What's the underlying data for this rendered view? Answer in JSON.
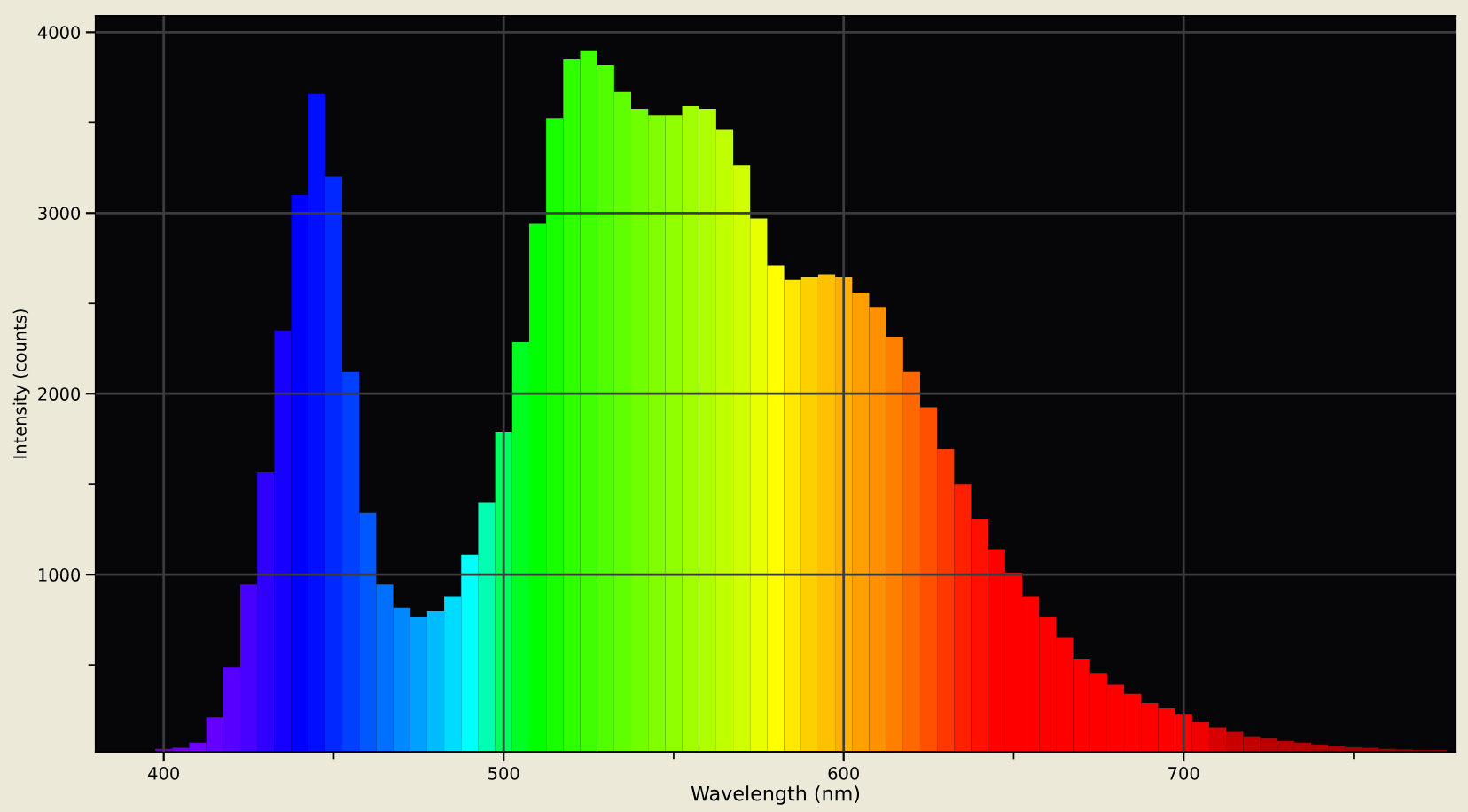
{
  "chart_data": {
    "type": "bar",
    "xlabel": "Wavelength (nm)",
    "ylabel": "Intensity (counts)",
    "x": [
      400,
      405,
      410,
      415,
      420,
      425,
      430,
      435,
      440,
      445,
      450,
      455,
      460,
      465,
      470,
      475,
      480,
      485,
      490,
      495,
      500,
      505,
      510,
      515,
      520,
      525,
      530,
      535,
      540,
      545,
      550,
      555,
      560,
      565,
      570,
      575,
      580,
      585,
      590,
      595,
      600,
      605,
      610,
      615,
      620,
      625,
      630,
      635,
      640,
      645,
      650,
      655,
      660,
      665,
      670,
      675,
      680,
      685,
      690,
      695,
      700,
      705,
      710,
      715,
      720,
      725,
      730,
      735,
      740,
      745,
      750,
      755,
      760,
      765,
      770,
      775
    ],
    "values": [
      36,
      42,
      70,
      210,
      490,
      945,
      1565,
      2350,
      3100,
      3660,
      3200,
      2120,
      1340,
      945,
      815,
      765,
      800,
      880,
      1110,
      1400,
      1790,
      2285,
      2940,
      3525,
      3850,
      3900,
      3820,
      3670,
      3575,
      3540,
      3540,
      3590,
      3575,
      3460,
      3265,
      2970,
      2710,
      2630,
      2645,
      2660,
      2645,
      2560,
      2480,
      2315,
      2120,
      1925,
      1695,
      1500,
      1305,
      1140,
      1010,
      880,
      765,
      650,
      535,
      455,
      390,
      340,
      290,
      260,
      225,
      185,
      155,
      130,
      105,
      95,
      80,
      70,
      60,
      50,
      45,
      42,
      36,
      33,
      30,
      30
    ],
    "colors": [
      "#6a00c0",
      "#7000e0",
      "#7000ff",
      "#6400ff",
      "#5800ff",
      "#4800ff",
      "#3000ff",
      "#1800ff",
      "#0000ff",
      "#0010ff",
      "#0028ff",
      "#0040ff",
      "#0058ff",
      "#0070ff",
      "#0088ff",
      "#00a0ff",
      "#00bcff",
      "#00dcff",
      "#00ffff",
      "#00ffb0",
      "#00ff60",
      "#00ff20",
      "#00ff00",
      "#18ff00",
      "#30ff00",
      "#40ff00",
      "#50ff00",
      "#60ff00",
      "#70ff00",
      "#80ff00",
      "#90ff00",
      "#a0ff00",
      "#b0ff00",
      "#c0ff00",
      "#d0ff00",
      "#e8ff00",
      "#ffff00",
      "#ffe800",
      "#ffd000",
      "#ffc000",
      "#ffb000",
      "#ffa000",
      "#ff9000",
      "#ff8000",
      "#ff6800",
      "#ff5000",
      "#ff3800",
      "#ff2000",
      "#ff1000",
      "#ff0000",
      "#ff0000",
      "#ff0000",
      "#ff0000",
      "#ff0000",
      "#ff0000",
      "#ff0000",
      "#ff0000",
      "#ff0000",
      "#ff0000",
      "#ff0000",
      "#ff0000",
      "#f00000",
      "#d80000",
      "#c80000",
      "#c00000",
      "#b80000",
      "#b40000",
      "#b00000",
      "#ac0000",
      "#a80000",
      "#a40000",
      "#a00000",
      "#9c0000",
      "#980000",
      "#940000",
      "#900000"
    ],
    "xlim": [
      380,
      780
    ],
    "ylim": [
      20,
      4090
    ],
    "xticks": [
      400,
      {
        "value": 450,
        "label": null
      },
      500,
      {
        "value": 550,
        "label": null
      },
      600,
      {
        "value": 650,
        "label": null
      },
      700,
      {
        "value": 750,
        "label": null
      }
    ],
    "yticks": [
      {
        "value": 500,
        "label": null
      },
      1000,
      {
        "value": 1500,
        "label": null
      },
      2000,
      {
        "value": 2500,
        "label": null
      },
      3000,
      {
        "value": 3500,
        "label": null
      },
      4000
    ],
    "grid": true
  }
}
